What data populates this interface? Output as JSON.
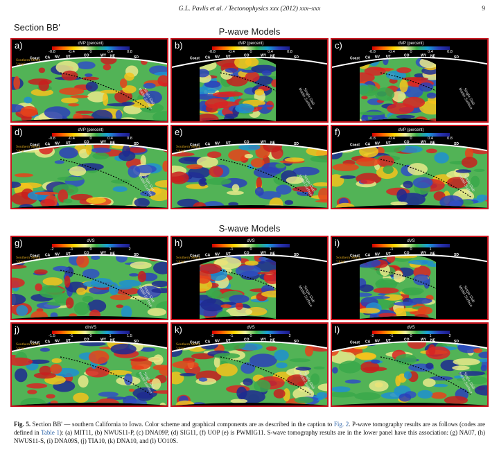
{
  "header": {
    "citation": "G.L. Pavlis et al. / Tectonophysics xxx (2012) xxx–xxx",
    "page": "9"
  },
  "section_title": "Section BB'",
  "groups": {
    "p_title": "P-wave Models",
    "s_title": "S-wave Models"
  },
  "annotations": {
    "sierra_line1": "Southern Sierra",
    "sierra_line2": "\"drip\"",
    "slab_line1": "Single Slab",
    "slab_line2": "Model Surface"
  },
  "provinces": [
    "Coast",
    "CA",
    "NV",
    "UT",
    "CO",
    "WY",
    "NE",
    "SD"
  ],
  "panels": [
    {
      "label": "a)",
      "colorbar": {
        "title": "dVP (percent)",
        "ticks": [
          "-0.8",
          "-0.4",
          "0",
          "0.4",
          "0.8"
        ]
      }
    },
    {
      "label": "b)",
      "colorbar": {
        "title": "dVP (percent)",
        "ticks": [
          "-0.8",
          "-0.4",
          "0",
          "0.4",
          "0.8"
        ]
      }
    },
    {
      "label": "c)",
      "colorbar": {
        "title": "dVP (percent)",
        "ticks": [
          "-0.8",
          "-0.4",
          "0",
          "0.4",
          "0.8"
        ]
      }
    },
    {
      "label": "d)",
      "colorbar": {
        "title": "dVP (percent)",
        "ticks": [
          "-0.8",
          "-0.4",
          "0",
          "0.4",
          "0.8"
        ]
      }
    },
    {
      "label": "e)",
      "colorbar": {
        "title": "",
        "ticks": []
      }
    },
    {
      "label": "f)",
      "colorbar": {
        "title": "dVP (percent)",
        "ticks": [
          "-0.8",
          "-0.4",
          "0",
          "0.4",
          "0.8"
        ]
      }
    },
    {
      "label": "g)",
      "colorbar": {
        "title": "dVS",
        "ticks": [
          "-2",
          "-1",
          "0",
          "1",
          "2"
        ]
      }
    },
    {
      "label": "h)",
      "colorbar": {
        "title": "dVS",
        "ticks": [
          "-1",
          "0",
          "1"
        ]
      }
    },
    {
      "label": "i)",
      "colorbar": {
        "title": "dVS",
        "ticks": [
          "-1",
          "0",
          "1"
        ]
      }
    },
    {
      "label": "j)",
      "colorbar": {
        "title": "dlnVS",
        "ticks": [
          "-1.5",
          "-1",
          "0",
          "1",
          "1.5"
        ]
      }
    },
    {
      "label": "k)",
      "colorbar": {
        "title": "dVS",
        "ticks": [
          "-2",
          "-1",
          "0",
          "1",
          "2"
        ]
      }
    },
    {
      "label": "l)",
      "colorbar": {
        "title": "dVS",
        "ticks": [
          "-2",
          "-1",
          "0",
          "1",
          "2"
        ]
      }
    }
  ],
  "caption": {
    "label": "Fig. 5.",
    "p1": " Section BB' — southern California to Iowa. Color scheme and graphical components are as described in the caption to ",
    "ref1": "Fig. 2",
    "p2": ". P-wave tomography results are as follows (codes are defined in ",
    "ref2": "Table 1",
    "p3": "): (a) MIT11, (b) NWUS11-P, (c) DNA09P, (d) SIG11, (f) UOP (e) is PWMIG11. S-wave tomography results are in the lower panel have this association: (g) NA07, (h) NWUS11-S, (i) DNA09S, (j) TIA10, (k) DNA10, and (l) UO10S."
  }
}
